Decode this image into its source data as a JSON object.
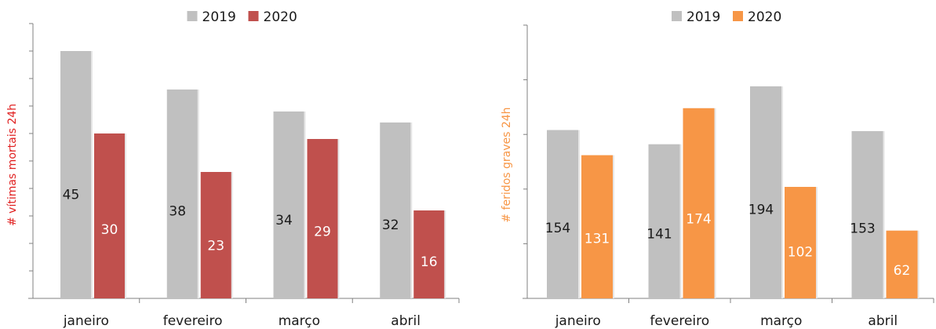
{
  "chart_data": [
    {
      "type": "bar",
      "categories": [
        "janeiro",
        "fevereiro",
        "março",
        "abril"
      ],
      "series": [
        {
          "name": "2019",
          "values": [
            45,
            38,
            34,
            32
          ],
          "color": "#c0c0c0",
          "label_color": "#1a1a1a"
        },
        {
          "name": "2020",
          "values": [
            30,
            23,
            29,
            16
          ],
          "color": "#c0504d",
          "label_color": "#ffffff"
        }
      ],
      "ylabel": "# vítimas mortais 24h",
      "ylabel_color": "#e02020",
      "ylim": [
        0,
        50
      ],
      "grid": false,
      "legend": "top-center"
    },
    {
      "type": "bar",
      "categories": [
        "janeiro",
        "fevereiro",
        "março",
        "abril"
      ],
      "series": [
        {
          "name": "2019",
          "values": [
            154,
            141,
            194,
            153
          ],
          "color": "#c0c0c0",
          "label_color": "#1a1a1a"
        },
        {
          "name": "2020",
          "values": [
            131,
            174,
            102,
            62
          ],
          "color": "#f79646",
          "label_color": "#ffffff"
        }
      ],
      "ylabel": "# feridos graves 24h",
      "ylabel_color": "#f79646",
      "ylim": [
        0,
        250
      ],
      "grid": false,
      "legend": "top-center"
    }
  ]
}
